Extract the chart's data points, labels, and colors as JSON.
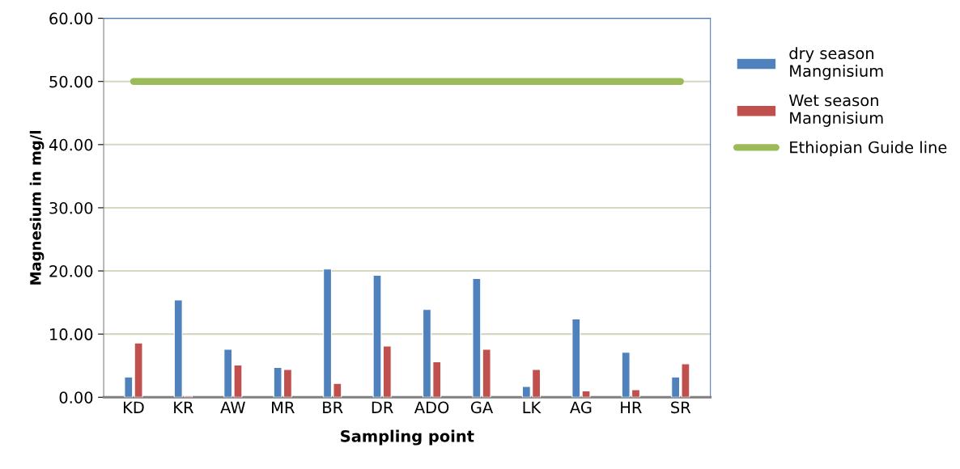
{
  "chart_data": {
    "type": "bar",
    "xlabel": "Sampling point",
    "ylabel": "Magnesium in mg/l",
    "categories": [
      "KD",
      "KR",
      "AW",
      "MR",
      "BR",
      "DR",
      "ADO",
      "GA",
      "LK",
      "AG",
      "HR",
      "SR"
    ],
    "series": [
      {
        "name": "dry season\nMangnisium",
        "color": "#4f81bd",
        "values": [
          3.2,
          15.4,
          7.6,
          4.7,
          20.3,
          19.3,
          13.9,
          18.8,
          1.7,
          12.4,
          7.1,
          3.2
        ]
      },
      {
        "name": "Wet season\nMangnisium",
        "color": "#c0504d",
        "values": [
          8.6,
          0.2,
          5.1,
          4.4,
          2.2,
          8.1,
          5.6,
          7.6,
          4.4,
          1.0,
          1.2,
          5.3
        ]
      },
      {
        "name": "Ethiopian Guide line",
        "type": "line",
        "color": "#9bbb59",
        "values": [
          50,
          50,
          50,
          50,
          50,
          50,
          50,
          50,
          50,
          50,
          50,
          50
        ]
      }
    ],
    "ylim": [
      0,
      60
    ],
    "yticks": [
      {
        "value": 0,
        "label": "0.00"
      },
      {
        "value": 10,
        "label": "10.00"
      },
      {
        "value": 20,
        "label": "20.00"
      },
      {
        "value": 30,
        "label": "30.00"
      },
      {
        "value": 40,
        "label": "40.00"
      },
      {
        "value": 50,
        "label": "50.00"
      },
      {
        "value": 60,
        "label": "60.00"
      }
    ],
    "grid": "y",
    "legend": "right"
  }
}
